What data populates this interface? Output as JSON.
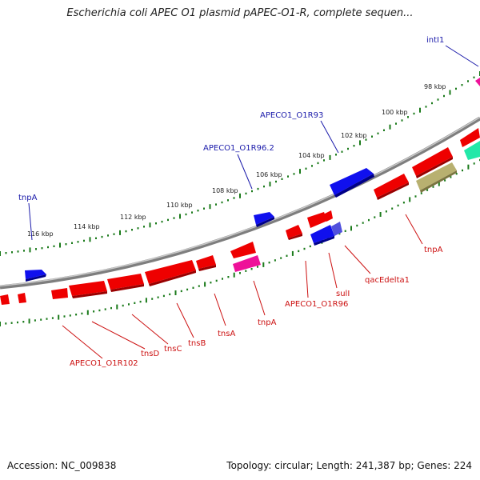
{
  "title": "Escherichia coli APEC O1 plasmid pAPEC-O1-R, complete sequen...",
  "footer": {
    "accession": "Accession: NC_009838",
    "summary": "Topology: circular; Length: 241,387 bp; Genes: 224"
  },
  "colors": {
    "backbone": "#8a8a8a",
    "forward_gene": "#0000ee",
    "reverse_gene": "#ee0000",
    "magenta_gene": "#ee1199",
    "olive_gene": "#b8b070",
    "teal_gene": "#22e8a8",
    "tick": "#1a7a1a",
    "label_blue": "#1a1aaa",
    "label_red": "#cc1111"
  },
  "position_labels": [
    "98 kbp",
    "100 kbp",
    "102 kbp",
    "104 kbp",
    "106 kbp",
    "108 kbp",
    "110 kbp",
    "112 kbp",
    "114 kbp",
    "116 kbp"
  ],
  "gene_labels_forward": [
    "intI1",
    "APECO1_O1R93",
    "APECO1_O1R96.2",
    "tnpA"
  ],
  "gene_labels_reverse": [
    "tnpA",
    "qacEdelta1",
    "sulI",
    "APECO1_O1R96",
    "tnpA",
    "tnsA",
    "tnsB",
    "tnsC",
    "tnsD",
    "APECO1_O1R102"
  ]
}
